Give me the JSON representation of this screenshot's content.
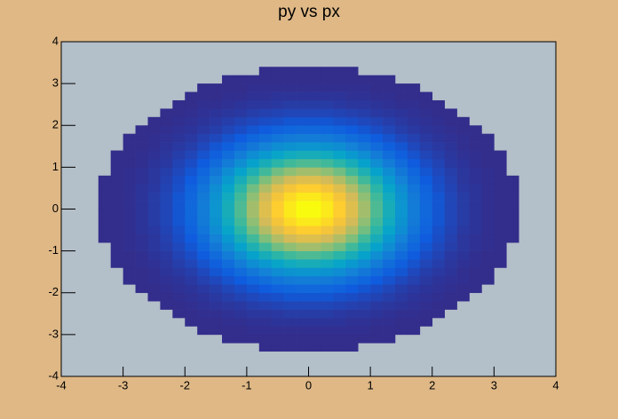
{
  "chart_data": {
    "type": "heatmap",
    "title": "py vs px",
    "xlim": [
      -4,
      4
    ],
    "ylim": [
      -4,
      4
    ],
    "xticks": [
      -4,
      -3,
      -2,
      -1,
      0,
      1,
      2,
      3,
      4
    ],
    "yticks": [
      -4,
      -3,
      -2,
      -1,
      0,
      1,
      2,
      3,
      4
    ],
    "background": "#b3bfc9",
    "colormap": [
      "#352a87",
      "#0f5cde",
      "#1481d6",
      "#06a4ca",
      "#2eb7a4",
      "#87bf77",
      "#d1bb59",
      "#fec832",
      "#f9fb0e"
    ],
    "z": [
      [
        0,
        0,
        0,
        0,
        0,
        0,
        0,
        0,
        0,
        0,
        0,
        0,
        0,
        0,
        0,
        0,
        0,
        0,
        0,
        0,
        0,
        0,
        0,
        0,
        0,
        0,
        0,
        0,
        0,
        0,
        0,
        0,
        0,
        0,
        0,
        0,
        0,
        0,
        0,
        0
      ],
      [
        0,
        0,
        0,
        0,
        0,
        0,
        0,
        0,
        0,
        0,
        0,
        0,
        0,
        0,
        0,
        0,
        0,
        0,
        0,
        0,
        0,
        0,
        0,
        0,
        0,
        0,
        0,
        0,
        0,
        0,
        0,
        0,
        0,
        0,
        0,
        0,
        0,
        0,
        0,
        0
      ],
      [
        0,
        0,
        0,
        0,
        0,
        0,
        0,
        0,
        0,
        0,
        0,
        0,
        0,
        0,
        0,
        0,
        0,
        0,
        0,
        0,
        0,
        0,
        0,
        0,
        0,
        0,
        0,
        0,
        0,
        0,
        0,
        0,
        0,
        0,
        0,
        0,
        0,
        0,
        0,
        0
      ],
      [
        0,
        0,
        0,
        0,
        0,
        0,
        0,
        0,
        0,
        0,
        0,
        0,
        0,
        0,
        0,
        0,
        1,
        1,
        1,
        1,
        1,
        1,
        1,
        1,
        0,
        0,
        0,
        0,
        0,
        0,
        0,
        0,
        0,
        0,
        0,
        0,
        0,
        0,
        0,
        0
      ],
      [
        0,
        0,
        0,
        0,
        0,
        0,
        0,
        0,
        0,
        0,
        0,
        0,
        0,
        1,
        1,
        1,
        1,
        1,
        1,
        1,
        1,
        1,
        1,
        1,
        1,
        1,
        1,
        0,
        0,
        0,
        0,
        0,
        0,
        0,
        0,
        0,
        0,
        0,
        0,
        0
      ],
      [
        0,
        0,
        0,
        0,
        0,
        0,
        0,
        0,
        0,
        0,
        0,
        1,
        1,
        1,
        1,
        2,
        2,
        2,
        2,
        2,
        2,
        2,
        2,
        2,
        2,
        1,
        1,
        1,
        1,
        0,
        0,
        0,
        0,
        0,
        0,
        0,
        0,
        0,
        0,
        0
      ],
      [
        0,
        0,
        0,
        0,
        0,
        0,
        0,
        0,
        0,
        0,
        1,
        1,
        1,
        2,
        2,
        3,
        3,
        4,
        4,
        4,
        4,
        4,
        4,
        3,
        3,
        2,
        2,
        1,
        1,
        1,
        0,
        0,
        0,
        0,
        0,
        0,
        0,
        0,
        0,
        0
      ],
      [
        0,
        0,
        0,
        0,
        0,
        0,
        0,
        0,
        0,
        1,
        1,
        2,
        2,
        3,
        4,
        5,
        5,
        6,
        7,
        7,
        7,
        7,
        6,
        5,
        5,
        4,
        3,
        2,
        2,
        1,
        1,
        0,
        0,
        0,
        0,
        0,
        0,
        0,
        0,
        0
      ],
      [
        0,
        0,
        0,
        0,
        0,
        0,
        0,
        0,
        1,
        1,
        2,
        3,
        4,
        5,
        6,
        8,
        9,
        10,
        11,
        11,
        11,
        11,
        10,
        9,
        8,
        6,
        5,
        4,
        3,
        2,
        1,
        1,
        0,
        0,
        0,
        0,
        0,
        0,
        0,
        0
      ],
      [
        0,
        0,
        0,
        0,
        0,
        0,
        0,
        1,
        1,
        2,
        3,
        4,
        6,
        8,
        10,
        12,
        14,
        15,
        17,
        17,
        17,
        17,
        15,
        14,
        12,
        10,
        8,
        6,
        4,
        3,
        2,
        1,
        1,
        0,
        0,
        0,
        0,
        0,
        0,
        0
      ],
      [
        0,
        0,
        0,
        0,
        0,
        0,
        1,
        1,
        2,
        3,
        4,
        6,
        8,
        11,
        14,
        17,
        20,
        23,
        25,
        26,
        26,
        25,
        23,
        20,
        17,
        14,
        11,
        8,
        6,
        4,
        3,
        2,
        1,
        1,
        0,
        0,
        0,
        0,
        0,
        0
      ],
      [
        0,
        0,
        0,
        0,
        0,
        1,
        1,
        2,
        3,
        4,
        6,
        9,
        12,
        16,
        20,
        25,
        29,
        33,
        36,
        37,
        37,
        36,
        33,
        29,
        25,
        20,
        16,
        12,
        9,
        6,
        4,
        3,
        2,
        1,
        1,
        0,
        0,
        0,
        0,
        0
      ],
      [
        0,
        0,
        0,
        0,
        0,
        1,
        1,
        2,
        4,
        6,
        8,
        12,
        17,
        22,
        28,
        34,
        40,
        46,
        49,
        51,
        51,
        49,
        46,
        40,
        34,
        28,
        22,
        17,
        12,
        8,
        6,
        4,
        2,
        1,
        1,
        0,
        0,
        0,
        0,
        0
      ],
      [
        0,
        0,
        0,
        0,
        1,
        1,
        2,
        3,
        5,
        8,
        11,
        16,
        22,
        29,
        37,
        46,
        53,
        60,
        65,
        68,
        68,
        65,
        60,
        53,
        46,
        37,
        29,
        22,
        16,
        11,
        8,
        5,
        3,
        2,
        1,
        1,
        0,
        0,
        0,
        0
      ],
      [
        0,
        0,
        0,
        0,
        1,
        1,
        2,
        4,
        6,
        10,
        14,
        20,
        28,
        37,
        47,
        58,
        68,
        77,
        83,
        86,
        86,
        83,
        77,
        68,
        58,
        47,
        37,
        28,
        20,
        14,
        10,
        6,
        4,
        2,
        1,
        1,
        0,
        0,
        0,
        0
      ],
      [
        0,
        0,
        0,
        0,
        1,
        2,
        3,
        5,
        8,
        12,
        17,
        25,
        34,
        46,
        58,
        71,
        83,
        94,
        101,
        106,
        106,
        101,
        94,
        83,
        71,
        58,
        46,
        34,
        25,
        17,
        12,
        8,
        5,
        3,
        2,
        1,
        0,
        0,
        0,
        0
      ],
      [
        0,
        0,
        0,
        1,
        1,
        2,
        3,
        5,
        9,
        14,
        20,
        29,
        40,
        53,
        68,
        83,
        97,
        110,
        119,
        124,
        124,
        119,
        110,
        97,
        83,
        68,
        53,
        40,
        29,
        20,
        14,
        9,
        5,
        3,
        2,
        1,
        1,
        0,
        0,
        0
      ],
      [
        0,
        0,
        0,
        1,
        1,
        2,
        4,
        6,
        10,
        15,
        23,
        33,
        46,
        60,
        77,
        94,
        110,
        124,
        134,
        140,
        140,
        134,
        124,
        110,
        94,
        77,
        60,
        46,
        33,
        23,
        15,
        10,
        6,
        4,
        2,
        1,
        1,
        0,
        0,
        0
      ],
      [
        0,
        0,
        0,
        1,
        1,
        2,
        4,
        7,
        11,
        17,
        25,
        36,
        49,
        65,
        83,
        101,
        119,
        134,
        145,
        151,
        151,
        145,
        134,
        119,
        101,
        83,
        65,
        49,
        36,
        25,
        17,
        11,
        7,
        4,
        2,
        1,
        1,
        0,
        0,
        0
      ],
      [
        0,
        0,
        0,
        1,
        1,
        2,
        4,
        7,
        11,
        17,
        26,
        37,
        51,
        68,
        86,
        106,
        124,
        140,
        151,
        158,
        158,
        151,
        140,
        124,
        106,
        86,
        68,
        51,
        37,
        26,
        17,
        11,
        7,
        4,
        2,
        1,
        1,
        0,
        0,
        0
      ],
      [
        0,
        0,
        0,
        1,
        1,
        2,
        4,
        7,
        11,
        17,
        26,
        37,
        51,
        68,
        86,
        106,
        124,
        140,
        151,
        158,
        158,
        151,
        140,
        124,
        106,
        86,
        68,
        51,
        37,
        26,
        17,
        11,
        7,
        4,
        2,
        1,
        1,
        0,
        0,
        0
      ],
      [
        0,
        0,
        0,
        1,
        1,
        2,
        4,
        7,
        11,
        17,
        25,
        36,
        49,
        65,
        83,
        101,
        119,
        134,
        145,
        151,
        151,
        145,
        134,
        119,
        101,
        83,
        65,
        49,
        36,
        25,
        17,
        11,
        7,
        4,
        2,
        1,
        1,
        0,
        0,
        0
      ],
      [
        0,
        0,
        0,
        1,
        1,
        2,
        4,
        6,
        10,
        15,
        23,
        33,
        46,
        60,
        77,
        94,
        110,
        124,
        134,
        140,
        140,
        134,
        124,
        110,
        94,
        77,
        60,
        46,
        33,
        23,
        15,
        10,
        6,
        4,
        2,
        1,
        1,
        0,
        0,
        0
      ],
      [
        0,
        0,
        0,
        1,
        1,
        2,
        3,
        5,
        9,
        14,
        20,
        29,
        40,
        53,
        68,
        83,
        97,
        110,
        119,
        124,
        124,
        119,
        110,
        97,
        83,
        68,
        53,
        40,
        29,
        20,
        14,
        9,
        5,
        3,
        2,
        1,
        1,
        0,
        0,
        0
      ],
      [
        0,
        0,
        0,
        0,
        1,
        2,
        3,
        5,
        8,
        12,
        17,
        25,
        34,
        46,
        58,
        71,
        83,
        94,
        101,
        106,
        106,
        101,
        94,
        83,
        71,
        58,
        46,
        34,
        25,
        17,
        12,
        8,
        5,
        3,
        2,
        1,
        0,
        0,
        0,
        0
      ],
      [
        0,
        0,
        0,
        0,
        1,
        1,
        2,
        4,
        6,
        10,
        14,
        20,
        28,
        37,
        47,
        58,
        68,
        77,
        83,
        86,
        86,
        83,
        77,
        68,
        58,
        47,
        37,
        28,
        20,
        14,
        10,
        6,
        4,
        2,
        1,
        1,
        0,
        0,
        0,
        0
      ],
      [
        0,
        0,
        0,
        0,
        1,
        1,
        2,
        3,
        5,
        8,
        11,
        16,
        22,
        29,
        37,
        46,
        53,
        60,
        65,
        68,
        68,
        65,
        60,
        53,
        46,
        37,
        29,
        22,
        16,
        11,
        8,
        5,
        3,
        2,
        1,
        1,
        0,
        0,
        0,
        0
      ],
      [
        0,
        0,
        0,
        0,
        0,
        1,
        1,
        2,
        4,
        6,
        8,
        12,
        17,
        22,
        28,
        34,
        40,
        46,
        49,
        51,
        51,
        49,
        46,
        40,
        34,
        28,
        22,
        17,
        12,
        8,
        6,
        4,
        2,
        1,
        1,
        0,
        0,
        0,
        0,
        0
      ],
      [
        0,
        0,
        0,
        0,
        0,
        1,
        1,
        2,
        3,
        4,
        6,
        9,
        12,
        16,
        20,
        25,
        29,
        33,
        36,
        37,
        37,
        36,
        33,
        29,
        25,
        20,
        16,
        12,
        9,
        6,
        4,
        3,
        2,
        1,
        1,
        0,
        0,
        0,
        0,
        0
      ],
      [
        0,
        0,
        0,
        0,
        0,
        0,
        1,
        1,
        2,
        3,
        4,
        6,
        8,
        11,
        14,
        17,
        20,
        23,
        25,
        26,
        26,
        25,
        23,
        20,
        17,
        14,
        11,
        8,
        6,
        4,
        3,
        2,
        1,
        1,
        0,
        0,
        0,
        0,
        0,
        0
      ],
      [
        0,
        0,
        0,
        0,
        0,
        0,
        0,
        1,
        1,
        2,
        3,
        4,
        6,
        8,
        10,
        12,
        14,
        15,
        17,
        17,
        17,
        17,
        15,
        14,
        12,
        10,
        8,
        6,
        4,
        3,
        2,
        1,
        1,
        0,
        0,
        0,
        0,
        0,
        0,
        0
      ],
      [
        0,
        0,
        0,
        0,
        0,
        0,
        0,
        0,
        1,
        1,
        2,
        3,
        4,
        5,
        6,
        8,
        9,
        10,
        11,
        11,
        11,
        11,
        10,
        9,
        8,
        6,
        5,
        4,
        3,
        2,
        1,
        1,
        0,
        0,
        0,
        0,
        0,
        0,
        0,
        0
      ],
      [
        0,
        0,
        0,
        0,
        0,
        0,
        0,
        0,
        0,
        1,
        1,
        2,
        2,
        3,
        4,
        5,
        5,
        6,
        7,
        7,
        7,
        7,
        6,
        5,
        5,
        4,
        3,
        2,
        2,
        1,
        1,
        0,
        0,
        0,
        0,
        0,
        0,
        0,
        0,
        0
      ],
      [
        0,
        0,
        0,
        0,
        0,
        0,
        0,
        0,
        0,
        0,
        1,
        1,
        1,
        2,
        2,
        3,
        3,
        4,
        4,
        4,
        4,
        4,
        4,
        3,
        3,
        2,
        2,
        1,
        1,
        1,
        0,
        0,
        0,
        0,
        0,
        0,
        0,
        0,
        0,
        0
      ],
      [
        0,
        0,
        0,
        0,
        0,
        0,
        0,
        0,
        0,
        0,
        0,
        1,
        1,
        1,
        1,
        2,
        2,
        2,
        2,
        2,
        2,
        2,
        2,
        2,
        2,
        1,
        1,
        1,
        1,
        0,
        0,
        0,
        0,
        0,
        0,
        0,
        0,
        0,
        0,
        0
      ],
      [
        0,
        0,
        0,
        0,
        0,
        0,
        0,
        0,
        0,
        0,
        0,
        0,
        0,
        1,
        1,
        1,
        1,
        1,
        1,
        1,
        1,
        1,
        1,
        1,
        1,
        1,
        1,
        0,
        0,
        0,
        0,
        0,
        0,
        0,
        0,
        0,
        0,
        0,
        0,
        0
      ],
      [
        0,
        0,
        0,
        0,
        0,
        0,
        0,
        0,
        0,
        0,
        0,
        0,
        0,
        0,
        0,
        0,
        1,
        1,
        1,
        1,
        1,
        1,
        1,
        1,
        0,
        0,
        0,
        0,
        0,
        0,
        0,
        0,
        0,
        0,
        0,
        0,
        0,
        0,
        0,
        0
      ],
      [
        0,
        0,
        0,
        0,
        0,
        0,
        0,
        0,
        0,
        0,
        0,
        0,
        0,
        0,
        0,
        0,
        0,
        0,
        0,
        0,
        0,
        0,
        0,
        0,
        0,
        0,
        0,
        0,
        0,
        0,
        0,
        0,
        0,
        0,
        0,
        0,
        0,
        0,
        0,
        0
      ],
      [
        0,
        0,
        0,
        0,
        0,
        0,
        0,
        0,
        0,
        0,
        0,
        0,
        0,
        0,
        0,
        0,
        0,
        0,
        0,
        0,
        0,
        0,
        0,
        0,
        0,
        0,
        0,
        0,
        0,
        0,
        0,
        0,
        0,
        0,
        0,
        0,
        0,
        0,
        0,
        0
      ],
      [
        0,
        0,
        0,
        0,
        0,
        0,
        0,
        0,
        0,
        0,
        0,
        0,
        0,
        0,
        0,
        0,
        0,
        0,
        0,
        0,
        0,
        0,
        0,
        0,
        0,
        0,
        0,
        0,
        0,
        0,
        0,
        0,
        0,
        0,
        0,
        0,
        0,
        0,
        0,
        0
      ]
    ]
  }
}
